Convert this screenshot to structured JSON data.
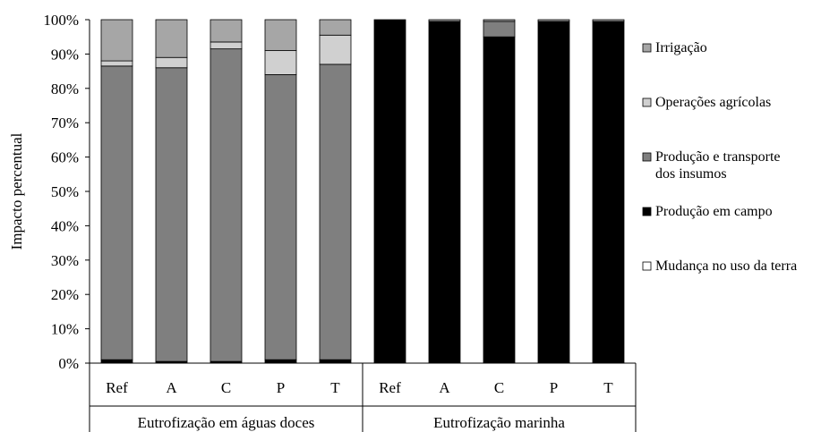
{
  "chart_data": {
    "type": "bar",
    "stacked": true,
    "percent": true,
    "ylabel": "Impacto percentual",
    "ylim": [
      0,
      100
    ],
    "yticks": [
      "0%",
      "10%",
      "20%",
      "30%",
      "40%",
      "50%",
      "60%",
      "70%",
      "80%",
      "90%",
      "100%"
    ],
    "grid": false,
    "legend_position": "right",
    "groups": [
      {
        "label": "Eutrofização em águas doces",
        "categories": [
          "Ref",
          "A",
          "C",
          "P",
          "T"
        ]
      },
      {
        "label": "Eutrofização marinha",
        "categories": [
          "Ref",
          "A",
          "C",
          "P",
          "T"
        ]
      }
    ],
    "categories": [
      "Ref",
      "A",
      "C",
      "P",
      "T",
      "Ref",
      "A",
      "C",
      "P",
      "T"
    ],
    "series": [
      {
        "name": "Mudança no uso da terra",
        "color": "#ffffff",
        "values": [
          0,
          0,
          0,
          0,
          0,
          0,
          0,
          0,
          0,
          0
        ]
      },
      {
        "name": "Produção em campo",
        "color": "#000000",
        "values": [
          1,
          0.5,
          0.5,
          1,
          1,
          100,
          99.5,
          95,
          99.5,
          99.5
        ]
      },
      {
        "name": "Produção e transporte dos insumos",
        "color": "#7f7f7f",
        "values": [
          85.5,
          85.5,
          91,
          83,
          86,
          0,
          0,
          4.5,
          0,
          0
        ]
      },
      {
        "name": "Operações agrícolas",
        "color": "#d0d0d0",
        "values": [
          1.5,
          3,
          2,
          7,
          8.5,
          0,
          0,
          0,
          0,
          0
        ]
      },
      {
        "name": "Irrigação",
        "color": "#a6a6a6",
        "values": [
          12,
          11,
          6.5,
          9,
          4.5,
          0,
          0.5,
          0.5,
          0.5,
          0.5
        ]
      }
    ],
    "legend_order": [
      "Irrigação",
      "Operações agrícolas",
      "Produção e transporte dos insumos",
      "Produção em campo",
      "Mudança no uso da terra"
    ],
    "legend_lines": {
      "Produção e transporte dos insumos": [
        "Produção e transporte",
        "dos insumos"
      ]
    }
  }
}
